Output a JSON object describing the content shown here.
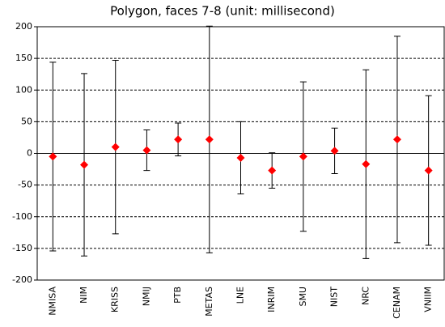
{
  "chart_data": {
    "type": "errorbar",
    "title": "Polygon, faces 7-8 (unit: millisecond)",
    "categories": [
      "NMISA",
      "NIM",
      "KRISS",
      "NMIJ",
      "PTB",
      "METAS",
      "LNE",
      "INRIM",
      "SMU",
      "NIST",
      "NRC",
      "CENAM",
      "VNIIM"
    ],
    "values": [
      -5,
      -18,
      10,
      5,
      22,
      22,
      -7,
      -27,
      -5,
      4,
      -17,
      22,
      -27
    ],
    "errors": [
      149,
      144,
      137,
      32,
      26,
      179,
      57,
      28,
      118,
      36,
      149,
      163,
      118
    ],
    "color": "#ff0000",
    "ylim": [
      -200,
      200
    ],
    "yticks": [
      -200,
      -150,
      -100,
      -50,
      0,
      50,
      100,
      150,
      200
    ],
    "grid": true
  }
}
